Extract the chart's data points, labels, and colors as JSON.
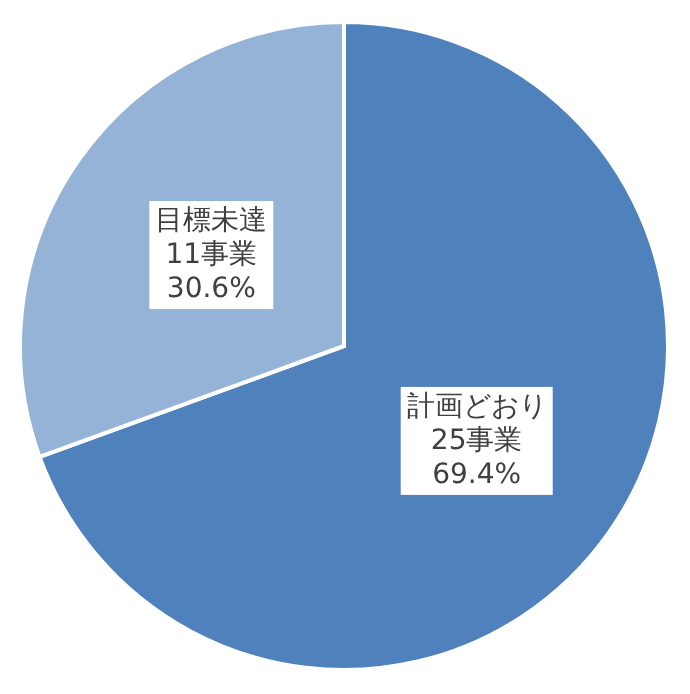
{
  "chart_data": {
    "type": "pie",
    "categories": [
      "計画どおり",
      "目標未達"
    ],
    "values": [
      25,
      11
    ],
    "value_labels": [
      "25事業\n69.4%",
      "11事業\n30.6%"
    ],
    "colors": [
      "#4f81bd",
      "#95b3d7"
    ]
  }
}
